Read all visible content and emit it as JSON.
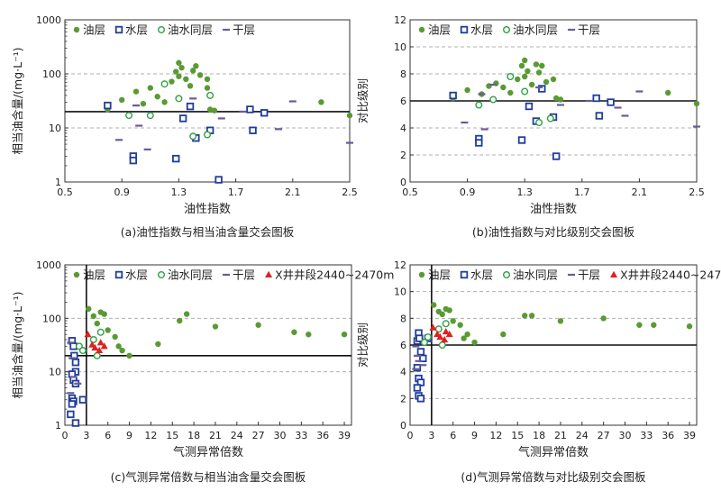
{
  "legend_labels": {
    "oil": "油层",
    "water": "水层",
    "oilwater": "油水同层",
    "dry": "干层",
    "well": "X井井段2440~2470m"
  },
  "colors": {
    "oil": "#5a9a34",
    "water": "#1f3e9a",
    "oilwater": "#2fa043",
    "dry": "#6a5a9c",
    "well": "#e02020",
    "grid": "#b0b0b0"
  },
  "chart_data": [
    {
      "type": "scatter",
      "caption": "(a)油性指数与相当油含量交会图板",
      "xlabel": "油性指数",
      "ylabel": "相当油含量/(mg·L⁻¹)",
      "xlim": [
        0.5,
        2.5
      ],
      "ylim": [
        1,
        1000
      ],
      "yscale": "log",
      "xticks": [
        0.5,
        0.9,
        1.3,
        1.7,
        2.1,
        2.5
      ],
      "yticks": [
        1,
        10,
        100,
        1000
      ],
      "ref_lines": {
        "y": 20
      },
      "series": [
        {
          "kind": "oil",
          "points": [
            [
              0.8,
              22
            ],
            [
              0.9,
              33
            ],
            [
              1.0,
              47
            ],
            [
              1.05,
              28
            ],
            [
              1.1,
              55
            ],
            [
              1.15,
              38
            ],
            [
              1.2,
              30
            ],
            [
              1.25,
              72
            ],
            [
              1.28,
              110
            ],
            [
              1.3,
              160
            ],
            [
              1.3,
              90
            ],
            [
              1.32,
              130
            ],
            [
              1.35,
              80
            ],
            [
              1.38,
              60
            ],
            [
              1.4,
              115
            ],
            [
              1.42,
              140
            ],
            [
              1.45,
              95
            ],
            [
              1.5,
              80
            ],
            [
              1.5,
              55
            ],
            [
              1.52,
              22
            ],
            [
              1.55,
              21
            ],
            [
              2.3,
              30
            ],
            [
              2.5,
              17
            ]
          ]
        },
        {
          "kind": "water",
          "points": [
            [
              0.8,
              26
            ],
            [
              0.98,
              3
            ],
            [
              0.98,
              2.5
            ],
            [
              1.28,
              2.7
            ],
            [
              1.33,
              15
            ],
            [
              1.38,
              25
            ],
            [
              1.42,
              6.5
            ],
            [
              1.52,
              9
            ],
            [
              1.58,
              1.1
            ],
            [
              1.8,
              22
            ],
            [
              1.82,
              9
            ],
            [
              1.9,
              19
            ]
          ]
        },
        {
          "kind": "oilwater",
          "points": [
            [
              0.95,
              17
            ],
            [
              1.1,
              17
            ],
            [
              1.2,
              65
            ],
            [
              1.3,
              35
            ],
            [
              1.4,
              7
            ],
            [
              1.5,
              7.5
            ],
            [
              1.52,
              40
            ]
          ]
        },
        {
          "kind": "dry",
          "points": [
            [
              0.88,
              6
            ],
            [
              1.0,
              26
            ],
            [
              1.02,
              11
            ],
            [
              1.08,
              4
            ],
            [
              1.4,
              35
            ],
            [
              1.6,
              15
            ],
            [
              1.75,
              20
            ],
            [
              2.0,
              9.5
            ],
            [
              2.1,
              31
            ],
            [
              2.5,
              5.3
            ]
          ]
        }
      ]
    },
    {
      "type": "scatter",
      "caption": "(b)油性指数与对比级别交会图板",
      "xlabel": "油性指数",
      "ylabel": "对比级别",
      "xlim": [
        0.5,
        2.5
      ],
      "ylim": [
        0,
        12
      ],
      "xticks": [
        0.5,
        0.9,
        1.3,
        1.7,
        2.1,
        2.5
      ],
      "yticks": [
        0,
        2,
        4,
        6,
        8,
        10,
        12
      ],
      "ref_lines": {
        "y": 6
      },
      "series": [
        {
          "kind": "oil",
          "points": [
            [
              0.8,
              6.2
            ],
            [
              0.9,
              6.8
            ],
            [
              1.0,
              6.5
            ],
            [
              1.05,
              7.1
            ],
            [
              1.1,
              7.3
            ],
            [
              1.15,
              7.0
            ],
            [
              1.2,
              6.6
            ],
            [
              1.25,
              7.6
            ],
            [
              1.28,
              8.6
            ],
            [
              1.3,
              9.0
            ],
            [
              1.3,
              7.8
            ],
            [
              1.32,
              8.2
            ],
            [
              1.35,
              7.2
            ],
            [
              1.38,
              8.7
            ],
            [
              1.4,
              8.1
            ],
            [
              1.42,
              8.6
            ],
            [
              1.45,
              7.4
            ],
            [
              1.5,
              7.6
            ],
            [
              1.52,
              6.2
            ],
            [
              1.55,
              6.1
            ],
            [
              2.3,
              6.6
            ],
            [
              2.5,
              5.8
            ]
          ]
        },
        {
          "kind": "water",
          "points": [
            [
              0.8,
              6.4
            ],
            [
              0.98,
              3.2
            ],
            [
              0.98,
              2.9
            ],
            [
              1.28,
              3.1
            ],
            [
              1.33,
              5.6
            ],
            [
              1.38,
              4.5
            ],
            [
              1.42,
              6.9
            ],
            [
              1.5,
              4.8
            ],
            [
              1.52,
              1.9
            ],
            [
              1.8,
              6.2
            ],
            [
              1.82,
              4.9
            ],
            [
              1.9,
              5.9
            ]
          ]
        },
        {
          "kind": "oilwater",
          "points": [
            [
              0.98,
              5.7
            ],
            [
              1.08,
              6.1
            ],
            [
              1.2,
              7.8
            ],
            [
              1.3,
              6.7
            ],
            [
              1.4,
              4.4
            ],
            [
              1.48,
              4.7
            ]
          ]
        },
        {
          "kind": "dry",
          "points": [
            [
              0.88,
              4.4
            ],
            [
              1.0,
              6.5
            ],
            [
              1.02,
              3.9
            ],
            [
              1.08,
              7.2
            ],
            [
              1.4,
              7.0
            ],
            [
              1.55,
              5.7
            ],
            [
              1.75,
              6.0
            ],
            [
              1.95,
              5.5
            ],
            [
              2.0,
              4.9
            ],
            [
              2.1,
              6.7
            ],
            [
              2.5,
              4.1
            ]
          ]
        }
      ]
    },
    {
      "type": "scatter",
      "caption": "(c)气测异常倍数与相当油含量交会图板",
      "xlabel": "气测异常倍数",
      "ylabel": "相当油含量/(mg·L⁻¹)",
      "xlim": [
        0,
        40
      ],
      "ylim": [
        1,
        1000
      ],
      "yscale": "log",
      "xticks": [
        0,
        3,
        6,
        9,
        12,
        15,
        18,
        21,
        24,
        27,
        30,
        33,
        36,
        39
      ],
      "yticks": [
        1,
        10,
        100,
        1000
      ],
      "ref_lines": {
        "x": 3,
        "y": 20
      },
      "series": [
        {
          "kind": "oil",
          "points": [
            [
              3.3,
              150
            ],
            [
              4,
              110
            ],
            [
              4.5,
              80
            ],
            [
              5,
              130
            ],
            [
              5.5,
              120
            ],
            [
              6,
              60
            ],
            [
              7,
              45
            ],
            [
              7.5,
              30
            ],
            [
              8,
              25
            ],
            [
              9,
              20
            ],
            [
              13,
              33
            ],
            [
              16,
              90
            ],
            [
              17,
              120
            ],
            [
              21,
              70
            ],
            [
              27,
              75
            ],
            [
              32,
              55
            ],
            [
              34,
              50
            ],
            [
              39,
              50
            ]
          ]
        },
        {
          "kind": "water",
          "points": [
            [
              1,
              38
            ],
            [
              1.2,
              30
            ],
            [
              1.3,
              20
            ],
            [
              1.5,
              10
            ],
            [
              1,
              9
            ],
            [
              1.2,
              7
            ],
            [
              1.5,
              6
            ],
            [
              1,
              3.2
            ],
            [
              1.2,
              2.8
            ],
            [
              1,
              2.5
            ],
            [
              0.8,
              1.6
            ],
            [
              1.5,
              1.1
            ],
            [
              2.5,
              3
            ],
            [
              1.5,
              15
            ]
          ]
        },
        {
          "kind": "oilwater",
          "points": [
            [
              2,
              30
            ],
            [
              2.5,
              25
            ],
            [
              4,
              40
            ],
            [
              5,
              55
            ],
            [
              4.5,
              20
            ]
          ]
        },
        {
          "kind": "dry",
          "points": [
            [
              0.8,
              35
            ],
            [
              1,
              18
            ],
            [
              1.2,
              8
            ],
            [
              0.8,
              4
            ],
            [
              1.8,
              6
            ]
          ]
        },
        {
          "kind": "well",
          "points": [
            [
              3.2,
              50
            ],
            [
              3.8,
              32
            ],
            [
              4.2,
              28
            ],
            [
              5,
              35
            ],
            [
              5.5,
              30
            ],
            [
              4.8,
              25
            ]
          ]
        }
      ]
    },
    {
      "type": "scatter",
      "caption": "(d)气测异常倍数与对比级别交会图板",
      "xlabel": "气测异常倍数",
      "ylabel": "对比级别",
      "xlim": [
        0,
        40
      ],
      "ylim": [
        0,
        12
      ],
      "xticks": [
        0,
        3,
        6,
        9,
        12,
        15,
        18,
        21,
        24,
        27,
        30,
        33,
        36,
        39
      ],
      "yticks": [
        0,
        2,
        4,
        6,
        8,
        10,
        12
      ],
      "ref_lines": {
        "x": 3,
        "y": 6
      },
      "series": [
        {
          "kind": "oil",
          "points": [
            [
              3.3,
              9.0
            ],
            [
              4,
              8.5
            ],
            [
              4.5,
              8.3
            ],
            [
              5,
              8.7
            ],
            [
              5.5,
              8.6
            ],
            [
              6,
              7.8
            ],
            [
              7,
              7.5
            ],
            [
              7.5,
              6.5
            ],
            [
              8,
              6.8
            ],
            [
              9,
              6.2
            ],
            [
              13,
              6.8
            ],
            [
              16,
              8.2
            ],
            [
              17,
              8.2
            ],
            [
              21,
              7.8
            ],
            [
              27,
              8.0
            ],
            [
              32,
              7.5
            ],
            [
              34,
              7.5
            ],
            [
              39,
              7.4
            ]
          ]
        },
        {
          "kind": "water",
          "points": [
            [
              1,
              6.3
            ],
            [
              1.2,
              6.9
            ],
            [
              1.3,
              6.5
            ],
            [
              1.5,
              5.5
            ],
            [
              1,
              4.3
            ],
            [
              1.2,
              3.5
            ],
            [
              1.5,
              3.2
            ],
            [
              1,
              2.8
            ],
            [
              1.2,
              2.2
            ],
            [
              1.5,
              2.0
            ],
            [
              2.5,
              6.5
            ],
            [
              1.8,
              5.0
            ]
          ]
        },
        {
          "kind": "oilwater",
          "points": [
            [
              2,
              6.2
            ],
            [
              2.5,
              6.6
            ],
            [
              4,
              7.2
            ],
            [
              5,
              7.6
            ],
            [
              4.5,
              6.0
            ]
          ]
        },
        {
          "kind": "dry",
          "points": [
            [
              0.8,
              5.9
            ],
            [
              1,
              5.2
            ],
            [
              1.2,
              4.8
            ],
            [
              0.8,
              4.2
            ],
            [
              1.8,
              4.5
            ]
          ]
        },
        {
          "kind": "well",
          "points": [
            [
              3.2,
              7.3
            ],
            [
              3.8,
              6.8
            ],
            [
              4.2,
              6.6
            ],
            [
              5,
              7.0
            ],
            [
              5.5,
              6.8
            ],
            [
              4.8,
              6.4
            ]
          ]
        }
      ]
    }
  ]
}
